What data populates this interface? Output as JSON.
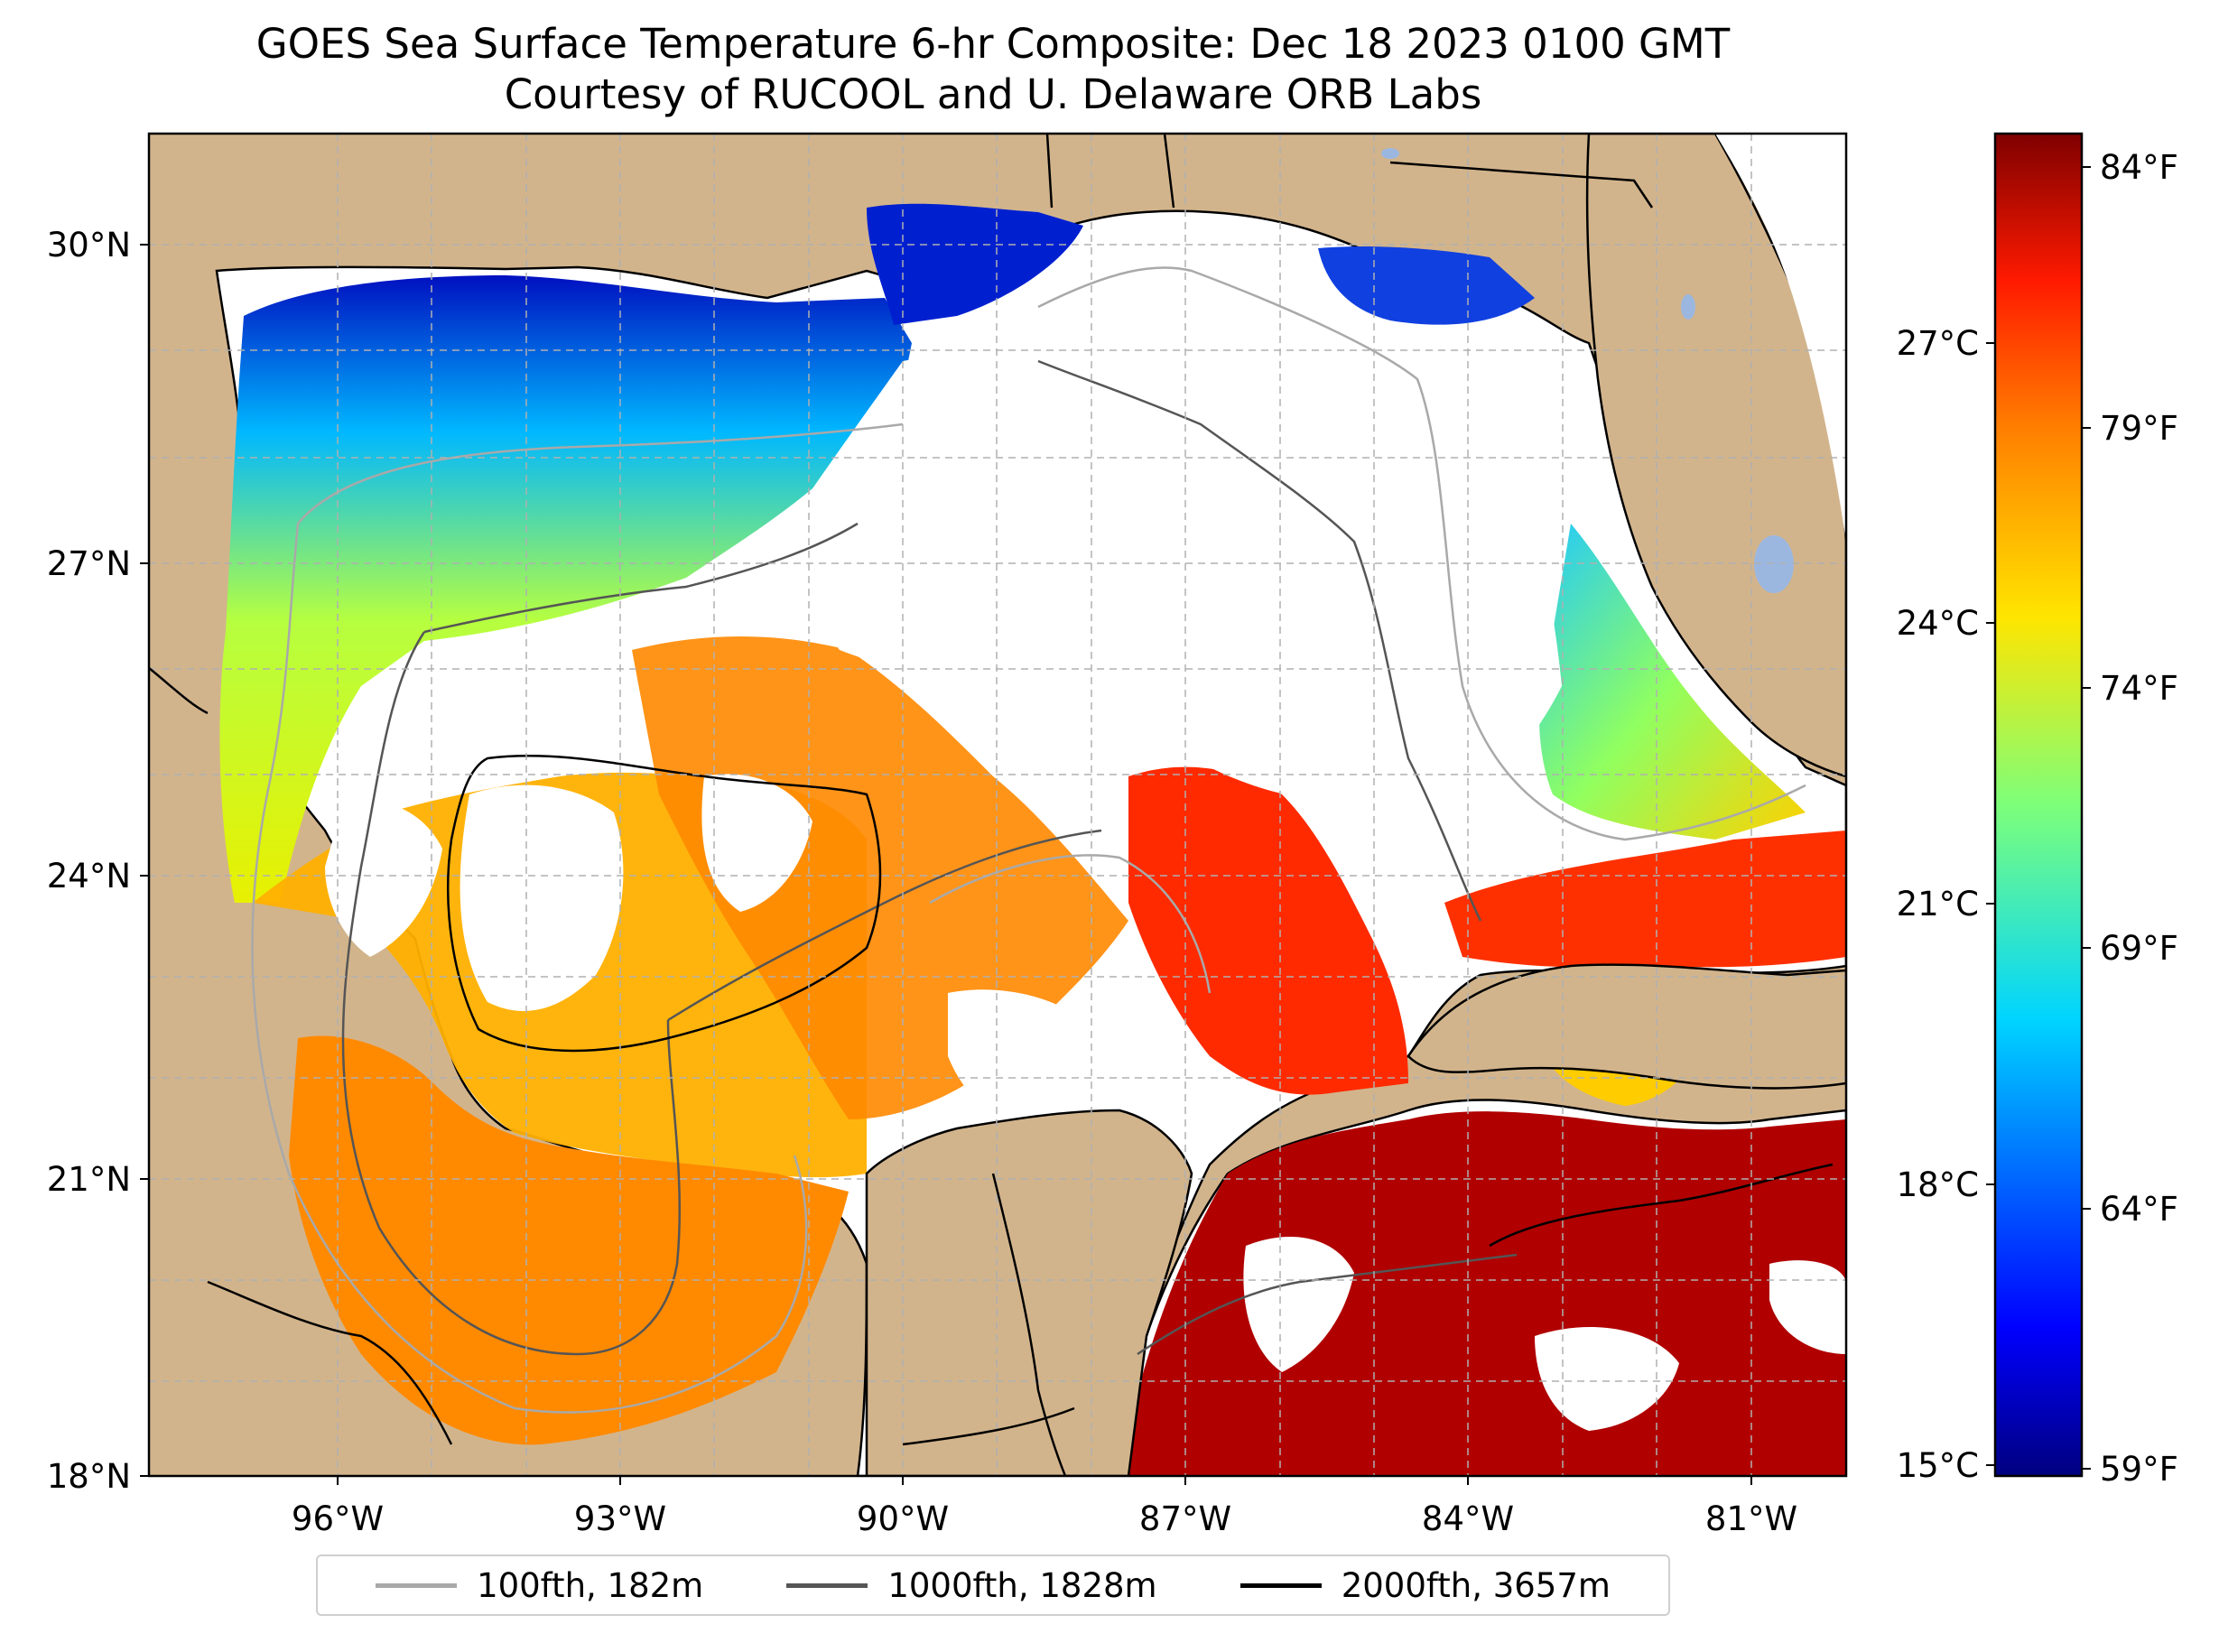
{
  "title": {
    "line1": "GOES Sea Surface Temperature 6-hr Composite: Dec 18 2023 0100 GMT",
    "line2": "Courtesy of RUCOOL and U. Delaware ORB Labs"
  },
  "map": {
    "lat_labels": [
      "30°N",
      "27°N",
      "24°N",
      "21°N",
      "18°N"
    ],
    "lon_labels": [
      "96°W",
      "93°W",
      "90°W",
      "87°W",
      "84°W",
      "81°W"
    ],
    "colors": {
      "land": "#d2b48c",
      "cloud_mask": "#ffffff",
      "gridline": "#b0b0b0",
      "lake": "#9bb7e0"
    }
  },
  "colorbar": {
    "celsius_labels": [
      "27°C",
      "24°C",
      "21°C",
      "18°C",
      "15°C"
    ],
    "fahrenheit_labels": [
      "84°F",
      "79°F",
      "74°F",
      "69°F",
      "64°F",
      "59°F"
    ],
    "colormap": "jet"
  },
  "legend": {
    "items": [
      {
        "label": "100fth, 182m",
        "color": "#a9a9a9"
      },
      {
        "label": "1000fth, 1828m",
        "color": "#555555"
      },
      {
        "label": "2000fth, 3657m",
        "color": "#000000"
      }
    ]
  }
}
